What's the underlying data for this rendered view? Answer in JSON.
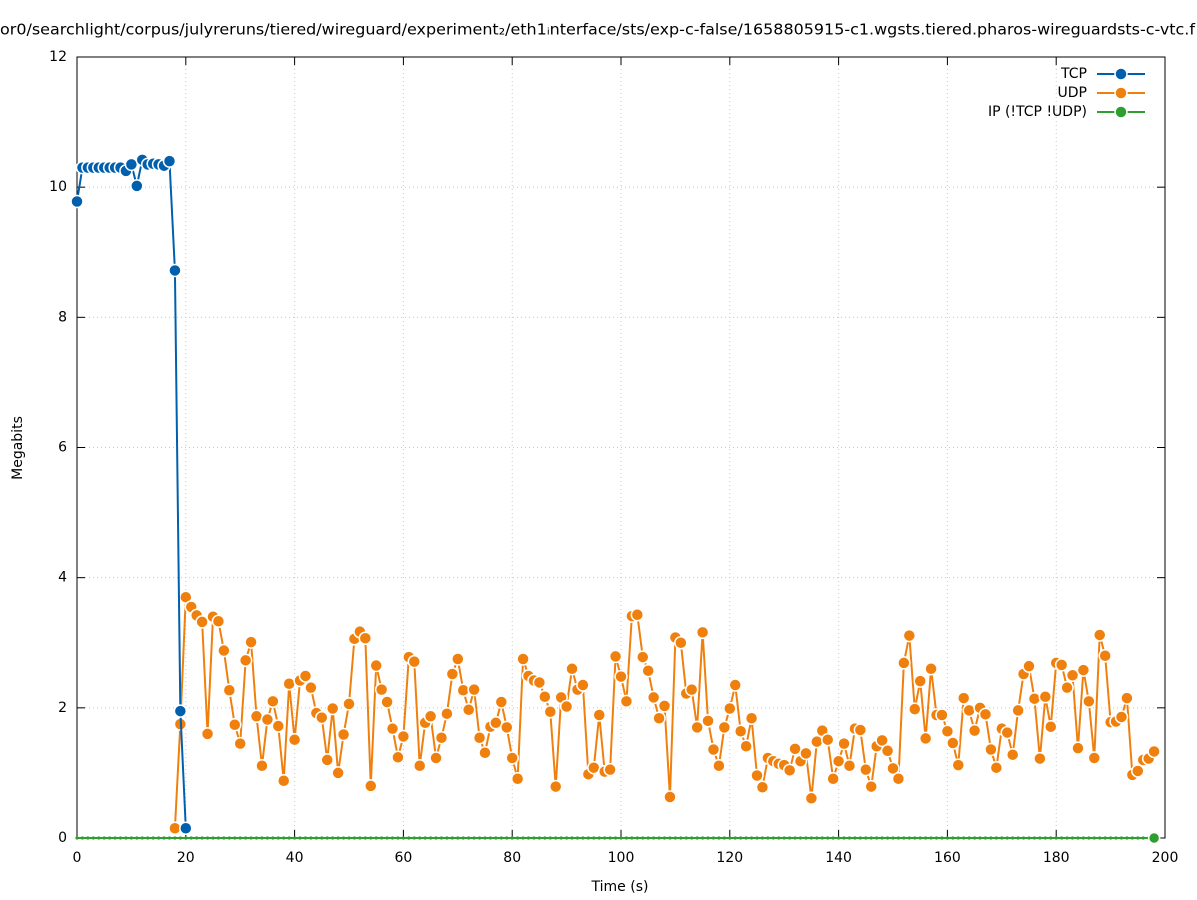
{
  "chart_data": {
    "type": "line",
    "title": "or0/searchlight/corpus/julyreruns/tiered/wireguard/experiment₂/eth1ᵢnterface/sts/exp-c-false/1658805915-c1.wgsts.tiered.pharos-wireguardsts-c-vtc.f",
    "x_label": "Time (s)",
    "y_label": "Megabits",
    "xlim": [
      0,
      200
    ],
    "xticks": [
      0,
      20,
      40,
      60,
      80,
      100,
      120,
      140,
      160,
      180,
      200
    ],
    "ylim": [
      0,
      12
    ],
    "yticks": [
      0,
      2,
      4,
      6,
      8,
      10,
      12
    ],
    "grid": true,
    "legend": "top-right",
    "series": [
      {
        "name": "TCP",
        "color": "#0060ad",
        "x": [
          0,
          1,
          2,
          3,
          4,
          5,
          6,
          7,
          8,
          9,
          10,
          11,
          12,
          13,
          14,
          15,
          16,
          17,
          18,
          19,
          20
        ],
        "values": [
          9.78,
          10.3,
          10.3,
          10.3,
          10.3,
          10.3,
          10.3,
          10.3,
          10.3,
          10.25,
          10.35,
          10.02,
          10.42,
          10.35,
          10.36,
          10.35,
          10.33,
          10.4,
          8.72,
          1.95,
          0.15
        ]
      },
      {
        "name": "UDP",
        "color": "#f0800e",
        "x": [
          18,
          19,
          20,
          21,
          22,
          23,
          24,
          25,
          26,
          27,
          28,
          29,
          30,
          31,
          32,
          33,
          34,
          35,
          36,
          37,
          38,
          39,
          40,
          41,
          42,
          43,
          44,
          45,
          46,
          47,
          48,
          49,
          50,
          51,
          52,
          53,
          54,
          55,
          56,
          57,
          58,
          59,
          60,
          61,
          62,
          63,
          64,
          65,
          66,
          67,
          68,
          69,
          70,
          71,
          72,
          73,
          74,
          75,
          76,
          77,
          78,
          79,
          80,
          81,
          82,
          83,
          84,
          85,
          86,
          87,
          88,
          89,
          90,
          91,
          92,
          93,
          94,
          95,
          96,
          97,
          98,
          99,
          100,
          101,
          102,
          103,
          104,
          105,
          106,
          107,
          108,
          109,
          110,
          111,
          112,
          113,
          114,
          115,
          116,
          117,
          118,
          119,
          120,
          121,
          122,
          123,
          124,
          125,
          126,
          127,
          128,
          129,
          130,
          131,
          132,
          133,
          134,
          135,
          136,
          137,
          138,
          139,
          140,
          141,
          142,
          143,
          144,
          145,
          146,
          147,
          148,
          149,
          150,
          151,
          152,
          153,
          154,
          155,
          156,
          157,
          158,
          159,
          160,
          161,
          162,
          163,
          164,
          165,
          166,
          167,
          168,
          169,
          170,
          171,
          172,
          173,
          174,
          175,
          176,
          177,
          178,
          179,
          180,
          181,
          182,
          183,
          184,
          185,
          186,
          187,
          188,
          189,
          190,
          191,
          192,
          193,
          194,
          195,
          196,
          197,
          198
        ],
        "values": [
          0.15,
          1.75,
          3.7,
          3.55,
          3.42,
          3.32,
          1.6,
          3.4,
          3.33,
          2.88,
          2.27,
          1.74,
          1.45,
          2.73,
          3.01,
          1.87,
          1.11,
          1.82,
          2.1,
          1.72,
          0.88,
          2.37,
          1.51,
          2.42,
          2.49,
          2.31,
          1.92,
          1.85,
          1.2,
          1.99,
          1.0,
          1.59,
          2.06,
          3.06,
          3.17,
          3.07,
          0.8,
          2.65,
          2.28,
          2.09,
          1.68,
          1.24,
          1.56,
          2.78,
          2.71,
          1.11,
          1.77,
          1.87,
          1.23,
          1.54,
          1.91,
          2.52,
          2.75,
          2.27,
          1.97,
          2.28,
          1.54,
          1.31,
          1.71,
          1.77,
          2.09,
          1.7,
          1.23,
          0.91,
          2.75,
          2.49,
          2.42,
          2.39,
          2.17,
          1.94,
          0.79,
          2.16,
          2.02,
          2.6,
          2.28,
          2.35,
          0.98,
          1.08,
          1.89,
          1.02,
          1.05,
          2.79,
          2.48,
          2.1,
          3.41,
          3.43,
          2.78,
          2.57,
          2.16,
          1.84,
          2.03,
          0.63,
          3.08,
          3.0,
          2.22,
          2.28,
          1.7,
          3.16,
          1.8,
          1.36,
          1.11,
          1.7,
          1.99,
          2.35,
          1.64,
          1.41,
          1.84,
          0.96,
          0.78,
          1.23,
          1.18,
          1.14,
          1.12,
          1.04,
          1.37,
          1.18,
          1.3,
          0.61,
          1.48,
          1.65,
          1.51,
          0.91,
          1.18,
          1.45,
          1.11,
          1.68,
          1.66,
          1.05,
          0.79,
          1.41,
          1.5,
          1.34,
          1.07,
          0.91,
          2.69,
          3.11,
          1.98,
          2.41,
          1.53,
          2.6,
          1.89,
          1.89,
          1.64,
          1.46,
          1.12,
          2.15,
          1.96,
          1.65,
          2.0,
          1.9,
          1.36,
          1.08,
          1.68,
          1.62,
          1.28,
          1.96,
          2.52,
          2.64,
          2.14,
          1.22,
          2.17,
          1.71,
          2.69,
          2.66,
          2.31,
          2.5,
          1.38,
          2.58,
          2.1,
          1.23,
          3.12,
          2.8,
          1.78,
          1.79,
          1.86,
          2.15,
          0.97,
          1.03,
          1.2,
          1.22,
          1.33
        ]
      },
      {
        "name": "IP (!TCP  !UDP)",
        "color": "#2e9e2e",
        "x": [
          0,
          1,
          2,
          3,
          4,
          5,
          6,
          7,
          8,
          9,
          10,
          11,
          12,
          13,
          14,
          15,
          16,
          17,
          18,
          19,
          20,
          21,
          22,
          23,
          24,
          25,
          26,
          27,
          28,
          29,
          30,
          31,
          32,
          33,
          34,
          35,
          36,
          37,
          38,
          39,
          40,
          41,
          42,
          43,
          44,
          45,
          46,
          47,
          48,
          49,
          50,
          51,
          52,
          53,
          54,
          55,
          56,
          57,
          58,
          59,
          60,
          61,
          62,
          63,
          64,
          65,
          66,
          67,
          68,
          69,
          70,
          71,
          72,
          73,
          74,
          75,
          76,
          77,
          78,
          79,
          80,
          81,
          82,
          83,
          84,
          85,
          86,
          87,
          88,
          89,
          90,
          91,
          92,
          93,
          94,
          95,
          96,
          97,
          98,
          99,
          100,
          101,
          102,
          103,
          104,
          105,
          106,
          107,
          108,
          109,
          110,
          111,
          112,
          113,
          114,
          115,
          116,
          117,
          118,
          119,
          120,
          121,
          122,
          123,
          124,
          125,
          126,
          127,
          128,
          129,
          130,
          131,
          132,
          133,
          134,
          135,
          136,
          137,
          138,
          139,
          140,
          141,
          142,
          143,
          144,
          145,
          146,
          147,
          148,
          149,
          150,
          151,
          152,
          153,
          154,
          155,
          156,
          157,
          158,
          159,
          160,
          161,
          162,
          163,
          164,
          165,
          166,
          167,
          168,
          169,
          170,
          171,
          172,
          173,
          174,
          175,
          176,
          177,
          178,
          179,
          180,
          181,
          182,
          183,
          184,
          185,
          186,
          187,
          188,
          189,
          190,
          191,
          192,
          193,
          194,
          195,
          196,
          197,
          198
        ],
        "values": [
          0,
          0,
          0,
          0,
          0,
          0,
          0,
          0,
          0,
          0,
          0,
          0,
          0,
          0,
          0,
          0,
          0,
          0,
          0,
          0,
          0,
          0,
          0,
          0,
          0,
          0,
          0,
          0,
          0,
          0,
          0,
          0,
          0,
          0,
          0,
          0,
          0,
          0,
          0,
          0,
          0,
          0,
          0,
          0,
          0,
          0,
          0,
          0,
          0,
          0,
          0,
          0,
          0,
          0,
          0,
          0,
          0,
          0,
          0,
          0,
          0,
          0,
          0,
          0,
          0,
          0,
          0,
          0,
          0,
          0,
          0,
          0,
          0,
          0,
          0,
          0,
          0,
          0,
          0,
          0,
          0,
          0,
          0,
          0,
          0,
          0,
          0,
          0,
          0,
          0,
          0,
          0,
          0,
          0,
          0,
          0,
          0,
          0,
          0,
          0,
          0,
          0,
          0,
          0,
          0,
          0,
          0,
          0,
          0,
          0,
          0,
          0,
          0,
          0,
          0,
          0,
          0,
          0,
          0,
          0,
          0,
          0,
          0,
          0,
          0,
          0,
          0,
          0,
          0,
          0,
          0,
          0,
          0,
          0,
          0,
          0,
          0,
          0,
          0,
          0,
          0,
          0,
          0,
          0,
          0,
          0,
          0,
          0,
          0,
          0,
          0,
          0,
          0,
          0,
          0,
          0,
          0,
          0,
          0,
          0,
          0,
          0,
          0,
          0,
          0,
          0,
          0,
          0,
          0,
          0,
          0,
          0,
          0,
          0,
          0,
          0,
          0,
          0,
          0,
          0,
          0,
          0,
          0,
          0,
          0,
          0,
          0,
          0,
          0,
          0,
          0,
          0,
          0,
          0,
          0,
          0,
          0,
          0,
          0
        ]
      }
    ]
  }
}
